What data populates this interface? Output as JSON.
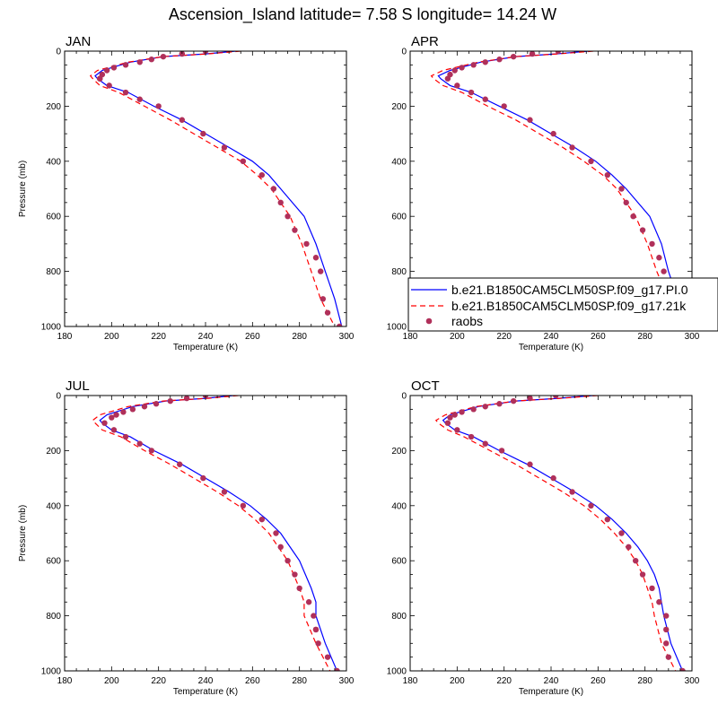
{
  "figure": {
    "title": "Ascension_Island  latitude= 7.58 S longitude= 14.24 W"
  },
  "legend": {
    "entries": [
      {
        "label": "b.e21.B1850CAM5CLM50SP.f09_g17.PI.0",
        "style": "solid-line",
        "color": "#0000ff"
      },
      {
        "label": "b.e21.B1850CAM5CLM50SP.f09_g17.21k",
        "style": "dashed-line",
        "color": "#ff0000"
      },
      {
        "label": "raobs",
        "style": "dot",
        "color": "#b0305a"
      }
    ]
  },
  "chart_data": [
    {
      "type": "line",
      "title": "JAN",
      "xlabel": "Temperature (K)",
      "ylabel": "Pressure (mb)",
      "xlim": [
        180,
        300
      ],
      "ylim": [
        1000,
        0
      ],
      "xticks": [
        180,
        200,
        220,
        240,
        260,
        280,
        300
      ],
      "yticks": [
        0,
        200,
        400,
        600,
        800,
        1000
      ],
      "series": [
        {
          "name": "b.e21.B1850CAM5CLM50SP.f09_g17.PI.0",
          "color": "#0000ff",
          "style": "solid",
          "x": [
            253,
            240,
            222,
            208,
            196,
            193,
            194,
            198,
            207,
            218,
            230,
            240,
            250,
            260,
            267,
            272,
            277,
            282,
            287,
            291,
            295,
            298
          ],
          "y": [
            0,
            10,
            20,
            40,
            70,
            90,
            100,
            125,
            150,
            200,
            250,
            300,
            350,
            400,
            450,
            500,
            550,
            600,
            700,
            800,
            900,
            1000
          ]
        },
        {
          "name": "b.e21.B1850CAM5CLM50SP.f09_g17.21k",
          "color": "#ff0000",
          "style": "dashed",
          "x": [
            255,
            241,
            222,
            207,
            194,
            191,
            192,
            195,
            203,
            214,
            225,
            235,
            245,
            255,
            262,
            268,
            272,
            276,
            281,
            285,
            289,
            295
          ],
          "y": [
            0,
            10,
            20,
            40,
            70,
            90,
            100,
            125,
            150,
            200,
            250,
            300,
            350,
            400,
            450,
            500,
            550,
            600,
            700,
            800,
            900,
            1000
          ]
        },
        {
          "name": "raobs",
          "color": "#b0305a",
          "style": "dots",
          "x": [
            240,
            230,
            222,
            217,
            212,
            206,
            201,
            198,
            196,
            195,
            195,
            199,
            206,
            212,
            220,
            230,
            239,
            248,
            256,
            264,
            269,
            272,
            275,
            278,
            283,
            287,
            289,
            290,
            292,
            297
          ],
          "y": [
            0,
            10,
            20,
            30,
            40,
            50,
            60,
            70,
            85,
            100,
            100,
            125,
            150,
            175,
            200,
            250,
            300,
            350,
            400,
            450,
            500,
            550,
            600,
            650,
            700,
            750,
            800,
            900,
            950,
            1000
          ]
        }
      ]
    },
    {
      "type": "line",
      "title": "APR",
      "xlabel": "Temperature (K)",
      "ylabel": "",
      "xlim": [
        180,
        300
      ],
      "ylim": [
        1000,
        0
      ],
      "xticks": [
        180,
        200,
        220,
        240,
        260,
        280,
        300
      ],
      "yticks": [
        0,
        200,
        400,
        600,
        800,
        1000
      ],
      "series": [
        {
          "name": "b.e21.B1850CAM5CLM50SP.f09_g17.PI.0",
          "color": "#0000ff",
          "style": "solid",
          "x": [
            256,
            242,
            225,
            210,
            197,
            192,
            193,
            197,
            206,
            218,
            230,
            240,
            250,
            259,
            266,
            272,
            277,
            282,
            287,
            290,
            294,
            299
          ],
          "y": [
            0,
            10,
            20,
            40,
            70,
            90,
            100,
            125,
            150,
            200,
            250,
            300,
            350,
            400,
            450,
            500,
            550,
            600,
            700,
            800,
            900,
            1000
          ]
        },
        {
          "name": "b.e21.B1850CAM5CLM50SP.f09_g17.21k",
          "color": "#ff0000",
          "style": "dashed",
          "x": [
            258,
            243,
            225,
            209,
            194,
            189,
            190,
            194,
            202,
            213,
            225,
            235,
            245,
            254,
            262,
            268,
            272,
            276,
            281,
            285,
            290,
            296
          ],
          "y": [
            0,
            10,
            20,
            40,
            70,
            90,
            100,
            125,
            150,
            200,
            250,
            300,
            350,
            400,
            450,
            500,
            550,
            600,
            700,
            800,
            900,
            1000
          ]
        },
        {
          "name": "raobs",
          "color": "#b0305a",
          "style": "dots",
          "x": [
            243,
            232,
            224,
            218,
            212,
            207,
            202,
            199,
            197,
            196,
            200,
            206,
            212,
            220,
            231,
            241,
            249,
            257,
            264,
            270,
            272,
            275,
            279,
            283,
            286,
            288,
            290,
            291,
            293,
            299
          ],
          "y": [
            0,
            10,
            20,
            30,
            40,
            50,
            60,
            70,
            85,
            100,
            125,
            150,
            175,
            200,
            250,
            300,
            350,
            400,
            450,
            500,
            550,
            600,
            650,
            700,
            750,
            800,
            850,
            900,
            950,
            1000
          ]
        }
      ]
    },
    {
      "type": "line",
      "title": "JUL",
      "xlabel": "Temperature (K)",
      "ylabel": "Pressure (mb)",
      "xlim": [
        180,
        300
      ],
      "ylim": [
        1000,
        0
      ],
      "xticks": [
        180,
        200,
        220,
        240,
        260,
        280,
        300
      ],
      "yticks": [
        0,
        200,
        400,
        600,
        800,
        1000
      ],
      "series": [
        {
          "name": "b.e21.B1850CAM5CLM50SP.f09_g17.PI.0",
          "color": "#0000ff",
          "style": "solid",
          "x": [
            252,
            240,
            223,
            209,
            198,
            195,
            196,
            200,
            208,
            218,
            230,
            240,
            250,
            259,
            266,
            272,
            276,
            280,
            285,
            287,
            287,
            291,
            296
          ],
          "y": [
            0,
            10,
            20,
            40,
            70,
            90,
            100,
            125,
            150,
            200,
            250,
            300,
            350,
            400,
            450,
            500,
            550,
            600,
            700,
            750,
            800,
            900,
            1000
          ]
        },
        {
          "name": "b.e21.B1850CAM5CLM50SP.f09_g17.21k",
          "color": "#ff0000",
          "style": "dashed",
          "x": [
            254,
            241,
            222,
            207,
            195,
            192,
            193,
            196,
            204,
            214,
            225,
            235,
            245,
            254,
            261,
            267,
            271,
            275,
            280,
            282,
            282,
            287,
            293
          ],
          "y": [
            0,
            10,
            20,
            40,
            70,
            90,
            100,
            125,
            150,
            200,
            250,
            300,
            350,
            400,
            450,
            500,
            550,
            600,
            700,
            750,
            800,
            900,
            1000
          ]
        },
        {
          "name": "raobs",
          "color": "#b0305a",
          "style": "dots",
          "x": [
            240,
            232,
            225,
            219,
            214,
            209,
            205,
            202,
            200,
            197,
            201,
            206,
            212,
            217,
            229,
            239,
            248,
            256,
            264,
            270,
            272,
            275,
            278,
            280,
            284,
            286,
            287,
            287,
            288,
            292,
            296
          ],
          "y": [
            0,
            10,
            20,
            30,
            40,
            50,
            60,
            70,
            80,
            100,
            125,
            150,
            175,
            200,
            250,
            300,
            350,
            400,
            450,
            500,
            550,
            600,
            650,
            700,
            750,
            800,
            850,
            850,
            900,
            950,
            1000
          ]
        }
      ]
    },
    {
      "type": "line",
      "title": "OCT",
      "xlabel": "Temperature (K)",
      "ylabel": "",
      "xlim": [
        180,
        300
      ],
      "ylim": [
        1000,
        0
      ],
      "xticks": [
        180,
        200,
        220,
        240,
        260,
        280,
        300
      ],
      "yticks": [
        0,
        200,
        400,
        600,
        800,
        1000
      ],
      "series": [
        {
          "name": "b.e21.B1850CAM5CLM50SP.f09_g17.PI.0",
          "color": "#0000ff",
          "style": "solid",
          "x": [
            258,
            243,
            225,
            209,
            197,
            194,
            195,
            199,
            207,
            218,
            230,
            240,
            250,
            259,
            266,
            272,
            277,
            281,
            284,
            286,
            287,
            288,
            291,
            296
          ],
          "y": [
            0,
            10,
            20,
            40,
            70,
            90,
            100,
            125,
            150,
            200,
            250,
            300,
            350,
            400,
            450,
            500,
            550,
            600,
            650,
            700,
            750,
            800,
            900,
            1000
          ]
        },
        {
          "name": "b.e21.B1850CAM5CLM50SP.f09_g17.21k",
          "color": "#ff0000",
          "style": "dashed",
          "x": [
            260,
            244,
            225,
            208,
            195,
            191,
            192,
            196,
            203,
            214,
            225,
            235,
            245,
            254,
            261,
            267,
            272,
            276,
            279,
            281,
            283,
            284,
            287,
            293
          ],
          "y": [
            0,
            10,
            20,
            40,
            70,
            90,
            100,
            125,
            150,
            200,
            250,
            300,
            350,
            400,
            450,
            500,
            550,
            600,
            650,
            700,
            750,
            800,
            900,
            1000
          ]
        },
        {
          "name": "raobs",
          "color": "#b0305a",
          "style": "dots",
          "x": [
            242,
            231,
            224,
            218,
            212,
            207,
            202,
            199,
            197,
            196,
            200,
            206,
            212,
            219,
            231,
            241,
            249,
            257,
            264,
            270,
            273,
            276,
            279,
            283,
            286,
            289,
            289,
            289,
            290,
            296
          ],
          "y": [
            0,
            10,
            20,
            30,
            40,
            50,
            60,
            70,
            80,
            100,
            125,
            150,
            175,
            200,
            250,
            300,
            350,
            400,
            450,
            500,
            550,
            600,
            650,
            700,
            750,
            800,
            850,
            900,
            950,
            1000
          ]
        }
      ]
    }
  ]
}
